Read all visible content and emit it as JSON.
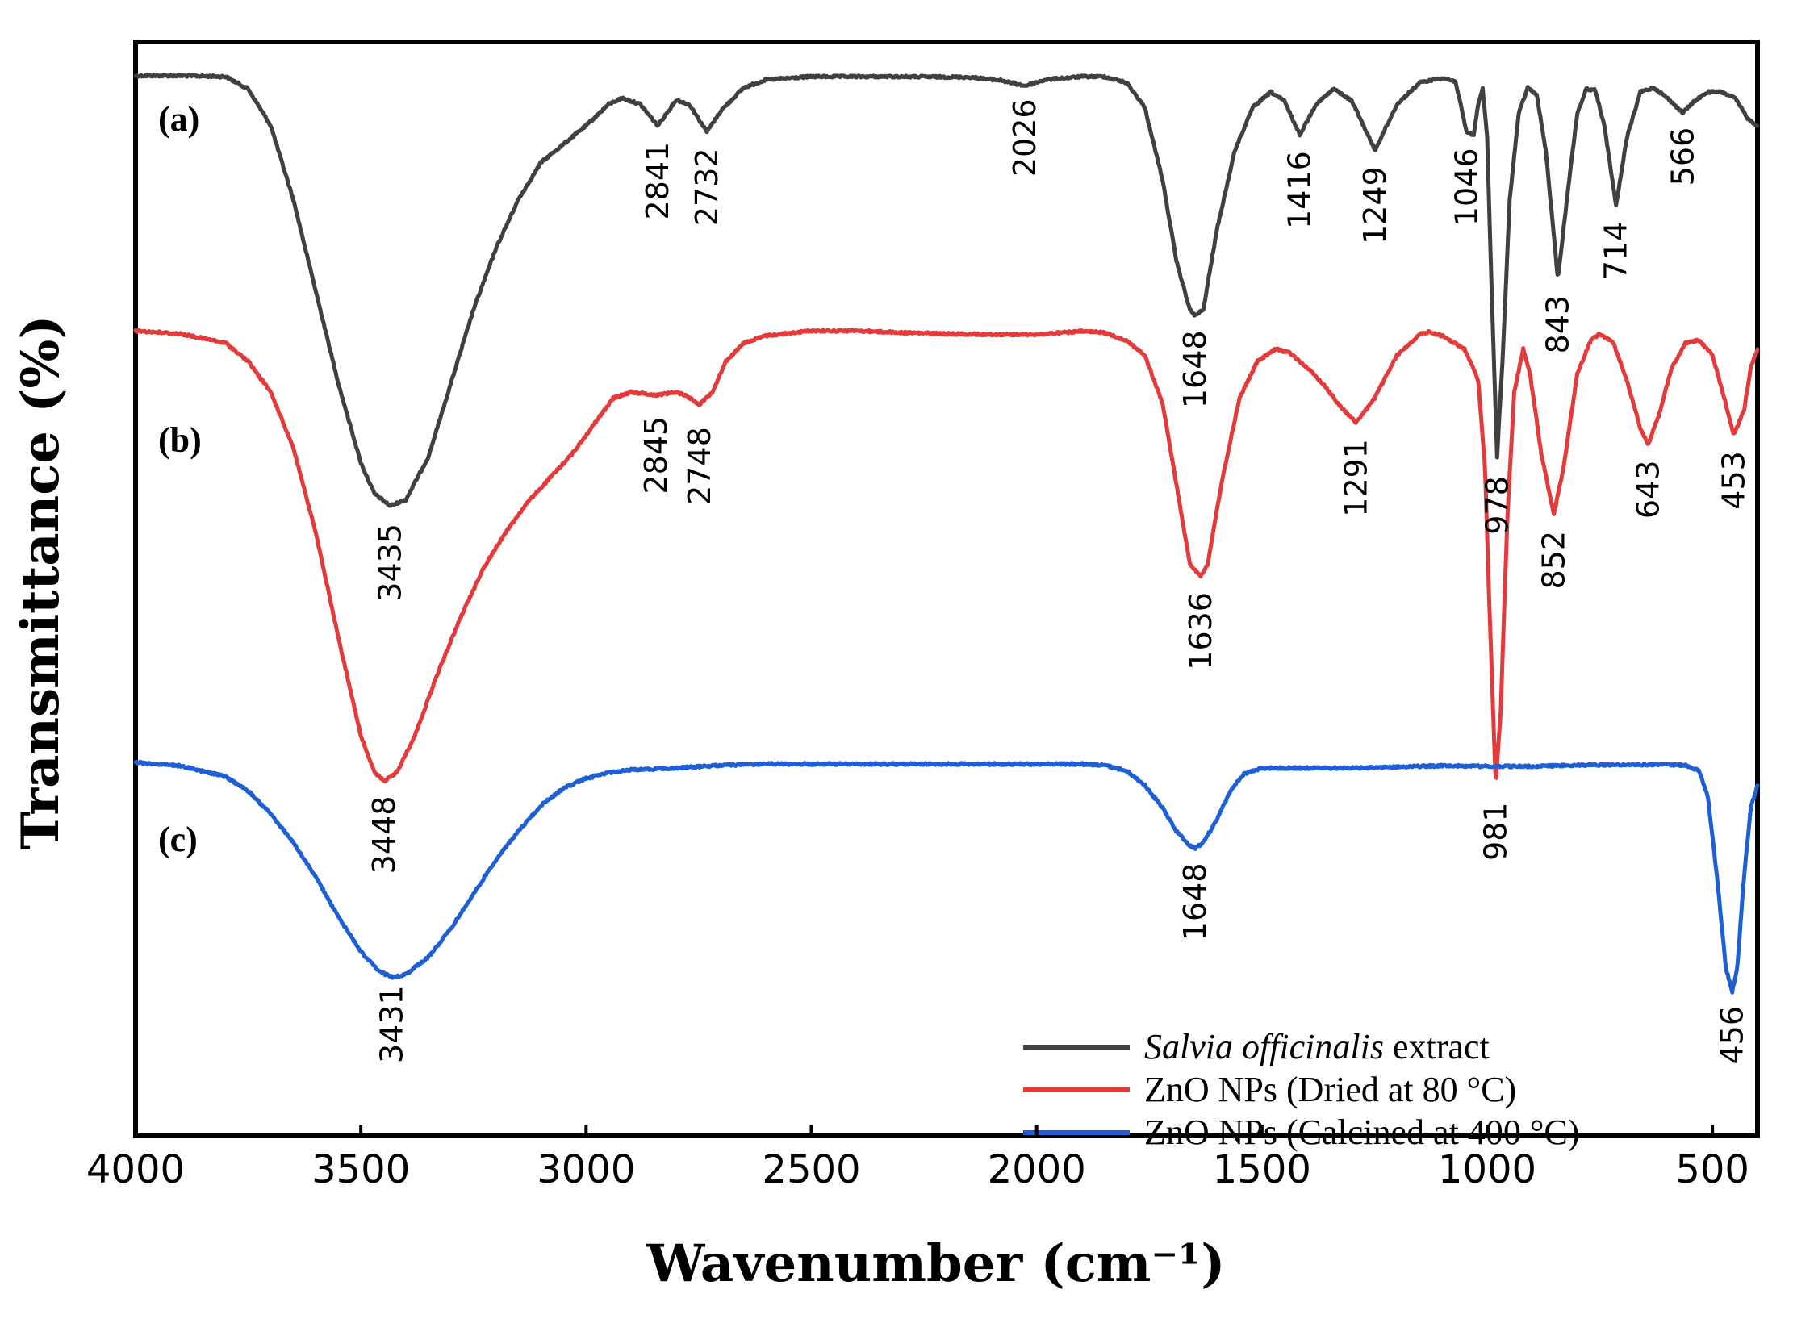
{
  "chart_data": {
    "type": "line",
    "xlabel": "Wavenumber (cm⁻¹)",
    "ylabel": "Transmittance (%)",
    "xlim": [
      4000,
      400
    ],
    "x_reversed": true,
    "y_scale": "arbitrary, vertically offset curves",
    "y_tick_labels": false,
    "grid": false,
    "legend_position": "bottom-right",
    "x_ticks": [
      4000,
      3500,
      3000,
      2500,
      2000,
      1500,
      1000,
      500
    ],
    "x_tick_labels": [
      "4000",
      "3500",
      "3000",
      "2500",
      "2000",
      "1500",
      "1000",
      "500"
    ],
    "series": [
      {
        "tag": "(a)",
        "legend_italic": "Salvia officinalis",
        "legend_rest": " extract",
        "color": "#404040",
        "points": [
          [
            4000,
            0.15
          ],
          [
            3900,
            0.15
          ],
          [
            3800,
            0.0
          ],
          [
            3750,
            -2.0
          ],
          [
            3700,
            -8.0
          ],
          [
            3650,
            -20.0
          ],
          [
            3600,
            -35.0
          ],
          [
            3550,
            -50.0
          ],
          [
            3500,
            -63.0
          ],
          [
            3470,
            -68.0
          ],
          [
            3435,
            -70.0
          ],
          [
            3400,
            -69.0
          ],
          [
            3350,
            -62.0
          ],
          [
            3300,
            -50.0
          ],
          [
            3250,
            -38.0
          ],
          [
            3200,
            -28.0
          ],
          [
            3150,
            -20.0
          ],
          [
            3100,
            -14.0
          ],
          [
            3050,
            -11.0
          ],
          [
            3000,
            -8.0
          ],
          [
            2950,
            -4.5
          ],
          [
            2920,
            -3.5
          ],
          [
            2880,
            -4.5
          ],
          [
            2841,
            -8.0
          ],
          [
            2800,
            -3.8
          ],
          [
            2770,
            -4.6
          ],
          [
            2732,
            -9.0
          ],
          [
            2700,
            -5.5
          ],
          [
            2650,
            -1.8
          ],
          [
            2600,
            -0.5
          ],
          [
            2500,
            0.0
          ],
          [
            2300,
            0.0
          ],
          [
            2150,
            -0.1
          ],
          [
            2080,
            -0.6
          ],
          [
            2026,
            -1.5
          ],
          [
            1980,
            -0.5
          ],
          [
            1900,
            0.0
          ],
          [
            1850,
            0.0
          ],
          [
            1800,
            -1.0
          ],
          [
            1760,
            -5.0
          ],
          [
            1720,
            -17.0
          ],
          [
            1690,
            -30.0
          ],
          [
            1660,
            -38.0
          ],
          [
            1648,
            -39.0
          ],
          [
            1630,
            -38.0
          ],
          [
            1600,
            -25.0
          ],
          [
            1560,
            -12.0
          ],
          [
            1520,
            -5.0
          ],
          [
            1480,
            -2.5
          ],
          [
            1450,
            -4.0
          ],
          [
            1416,
            -9.5
          ],
          [
            1380,
            -4.5
          ],
          [
            1340,
            -2.0
          ],
          [
            1300,
            -4.0
          ],
          [
            1249,
            -12.0
          ],
          [
            1200,
            -4.5
          ],
          [
            1150,
            -1.0
          ],
          [
            1100,
            -0.2
          ],
          [
            1070,
            -0.8
          ],
          [
            1046,
            -9.0
          ],
          [
            1030,
            -9.5
          ],
          [
            1020,
            -4.5
          ],
          [
            1010,
            -2.0
          ],
          [
            1000,
            -10.0
          ],
          [
            990,
            -35.0
          ],
          [
            978,
            -62.0
          ],
          [
            965,
            -45.0
          ],
          [
            950,
            -20.0
          ],
          [
            930,
            -6.0
          ],
          [
            910,
            -1.8
          ],
          [
            890,
            -3.0
          ],
          [
            870,
            -12.0
          ],
          [
            843,
            -33.0
          ],
          [
            820,
            -18.0
          ],
          [
            800,
            -6.0
          ],
          [
            780,
            -2.0
          ],
          [
            760,
            -2.2
          ],
          [
            740,
            -8.0
          ],
          [
            714,
            -21.0
          ],
          [
            690,
            -10.0
          ],
          [
            660,
            -2.5
          ],
          [
            630,
            -1.8
          ],
          [
            600,
            -3.5
          ],
          [
            566,
            -5.9
          ],
          [
            540,
            -4.0
          ],
          [
            510,
            -2.5
          ],
          [
            480,
            -2.5
          ],
          [
            450,
            -3.5
          ],
          [
            420,
            -7.0
          ],
          [
            400,
            -8.0
          ]
        ]
      },
      {
        "tag": "(b)",
        "legend_italic": "",
        "legend_rest": "ZnO NPs (Dried at 80 °C)",
        "color": "#e33b3b",
        "points": [
          [
            4000,
            0.0
          ],
          [
            3900,
            -0.5
          ],
          [
            3800,
            -2.0
          ],
          [
            3750,
            -5.0
          ],
          [
            3700,
            -10.0
          ],
          [
            3650,
            -19.0
          ],
          [
            3600,
            -33.0
          ],
          [
            3550,
            -50.0
          ],
          [
            3500,
            -66.0
          ],
          [
            3470,
            -72.0
          ],
          [
            3448,
            -73.5
          ],
          [
            3420,
            -72.0
          ],
          [
            3380,
            -66.0
          ],
          [
            3330,
            -56.0
          ],
          [
            3280,
            -47.0
          ],
          [
            3230,
            -39.0
          ],
          [
            3180,
            -33.0
          ],
          [
            3130,
            -28.0
          ],
          [
            3080,
            -24.0
          ],
          [
            3030,
            -20.0
          ],
          [
            2980,
            -15.0
          ],
          [
            2940,
            -11.0
          ],
          [
            2900,
            -10.0
          ],
          [
            2845,
            -10.5
          ],
          [
            2800,
            -10.0
          ],
          [
            2780,
            -10.5
          ],
          [
            2748,
            -12.0
          ],
          [
            2720,
            -10.0
          ],
          [
            2690,
            -5.0
          ],
          [
            2650,
            -2.0
          ],
          [
            2600,
            -0.8
          ],
          [
            2500,
            0.0
          ],
          [
            2400,
            0.0
          ],
          [
            2300,
            -0.3
          ],
          [
            2200,
            -0.5
          ],
          [
            2100,
            -0.6
          ],
          [
            2000,
            -0.6
          ],
          [
            1900,
            -0.1
          ],
          [
            1850,
            -0.3
          ],
          [
            1800,
            -1.6
          ],
          [
            1760,
            -4.0
          ],
          [
            1720,
            -12.0
          ],
          [
            1690,
            -25.0
          ],
          [
            1660,
            -38.0
          ],
          [
            1636,
            -40.0
          ],
          [
            1620,
            -38.0
          ],
          [
            1590,
            -25.0
          ],
          [
            1550,
            -11.0
          ],
          [
            1510,
            -5.0
          ],
          [
            1470,
            -3.0
          ],
          [
            1440,
            -3.5
          ],
          [
            1400,
            -6.0
          ],
          [
            1360,
            -9.0
          ],
          [
            1330,
            -12.0
          ],
          [
            1291,
            -15.0
          ],
          [
            1250,
            -11.0
          ],
          [
            1200,
            -4.0
          ],
          [
            1150,
            -0.6
          ],
          [
            1130,
            -0.2
          ],
          [
            1100,
            -0.8
          ],
          [
            1050,
            -3.0
          ],
          [
            1020,
            -8.0
          ],
          [
            1005,
            -22.0
          ],
          [
            995,
            -45.0
          ],
          [
            981,
            -74.0
          ],
          [
            970,
            -62.0
          ],
          [
            955,
            -30.0
          ],
          [
            940,
            -10.0
          ],
          [
            920,
            -3.0
          ],
          [
            905,
            -7.0
          ],
          [
            880,
            -20.0
          ],
          [
            852,
            -30.0
          ],
          [
            830,
            -22.0
          ],
          [
            800,
            -7.0
          ],
          [
            770,
            -1.5
          ],
          [
            750,
            -0.5
          ],
          [
            720,
            -2.0
          ],
          [
            690,
            -8.0
          ],
          [
            660,
            -16.0
          ],
          [
            643,
            -18.5
          ],
          [
            620,
            -14.0
          ],
          [
            590,
            -6.0
          ],
          [
            560,
            -2.0
          ],
          [
            530,
            -1.5
          ],
          [
            500,
            -4.0
          ],
          [
            470,
            -12.0
          ],
          [
            453,
            -17.0
          ],
          [
            430,
            -13.0
          ],
          [
            415,
            -6.0
          ],
          [
            400,
            -3.0
          ]
        ]
      },
      {
        "tag": "(c)",
        "legend_italic": "",
        "legend_rest": "ZnO NPs (Calcined at 400 °C)",
        "color": "#1f5fd6",
        "points": [
          [
            4000,
            0.0
          ],
          [
            3900,
            -0.6
          ],
          [
            3800,
            -2.5
          ],
          [
            3750,
            -5.0
          ],
          [
            3700,
            -9.0
          ],
          [
            3650,
            -14.0
          ],
          [
            3600,
            -20.0
          ],
          [
            3550,
            -27.0
          ],
          [
            3500,
            -33.0
          ],
          [
            3460,
            -36.5
          ],
          [
            3431,
            -37.5
          ],
          [
            3400,
            -37.0
          ],
          [
            3350,
            -34.0
          ],
          [
            3300,
            -29.0
          ],
          [
            3250,
            -23.0
          ],
          [
            3200,
            -17.0
          ],
          [
            3150,
            -12.0
          ],
          [
            3100,
            -7.5
          ],
          [
            3050,
            -4.5
          ],
          [
            3000,
            -2.8
          ],
          [
            2950,
            -1.8
          ],
          [
            2900,
            -1.3
          ],
          [
            2800,
            -1.0
          ],
          [
            2700,
            -0.5
          ],
          [
            2600,
            -0.3
          ],
          [
            2500,
            -0.3
          ],
          [
            2400,
            -0.3
          ],
          [
            2300,
            -0.3
          ],
          [
            2200,
            -0.3
          ],
          [
            2100,
            -0.3
          ],
          [
            2000,
            -0.3
          ],
          [
            1900,
            -0.3
          ],
          [
            1850,
            -0.5
          ],
          [
            1800,
            -1.5
          ],
          [
            1760,
            -4.0
          ],
          [
            1720,
            -8.0
          ],
          [
            1690,
            -12.0
          ],
          [
            1660,
            -14.5
          ],
          [
            1648,
            -15.0
          ],
          [
            1630,
            -14.0
          ],
          [
            1600,
            -10.0
          ],
          [
            1570,
            -5.0
          ],
          [
            1540,
            -2.0
          ],
          [
            1500,
            -1.0
          ],
          [
            1400,
            -1.0
          ],
          [
            1300,
            -1.0
          ],
          [
            1200,
            -0.8
          ],
          [
            1100,
            -0.6
          ],
          [
            1000,
            -0.7
          ],
          [
            900,
            -0.7
          ],
          [
            800,
            -0.5
          ],
          [
            700,
            -0.4
          ],
          [
            600,
            -0.4
          ],
          [
            560,
            -0.5
          ],
          [
            530,
            -1.5
          ],
          [
            510,
            -6.0
          ],
          [
            490,
            -20.0
          ],
          [
            470,
            -36.0
          ],
          [
            456,
            -40.0
          ],
          [
            445,
            -36.0
          ],
          [
            430,
            -20.0
          ],
          [
            415,
            -8.0
          ],
          [
            400,
            -4.0
          ]
        ]
      }
    ],
    "peak_labels": [
      {
        "series": 0,
        "label": "2841"
      },
      {
        "series": 0,
        "label": "2732"
      },
      {
        "series": 0,
        "label": "2026"
      },
      {
        "series": 0,
        "label": "1416"
      },
      {
        "series": 0,
        "label": "1249"
      },
      {
        "series": 0,
        "label": "1046"
      },
      {
        "series": 0,
        "label": "566"
      },
      {
        "series": 0,
        "label": "714"
      },
      {
        "series": 0,
        "label": "843"
      },
      {
        "series": 0,
        "label": "1648"
      },
      {
        "series": 0,
        "label": "978"
      },
      {
        "series": 0,
        "label": "3435"
      },
      {
        "series": 1,
        "label": "2845"
      },
      {
        "series": 1,
        "label": "2748"
      },
      {
        "series": 1,
        "label": "1291"
      },
      {
        "series": 1,
        "label": "643"
      },
      {
        "series": 1,
        "label": "453"
      },
      {
        "series": 1,
        "label": "852"
      },
      {
        "series": 1,
        "label": "1636"
      },
      {
        "series": 1,
        "label": "981"
      },
      {
        "series": 1,
        "label": "3448"
      },
      {
        "series": 2,
        "label": "1648"
      },
      {
        "series": 2,
        "label": "456"
      },
      {
        "series": 2,
        "label": "3431"
      }
    ]
  }
}
